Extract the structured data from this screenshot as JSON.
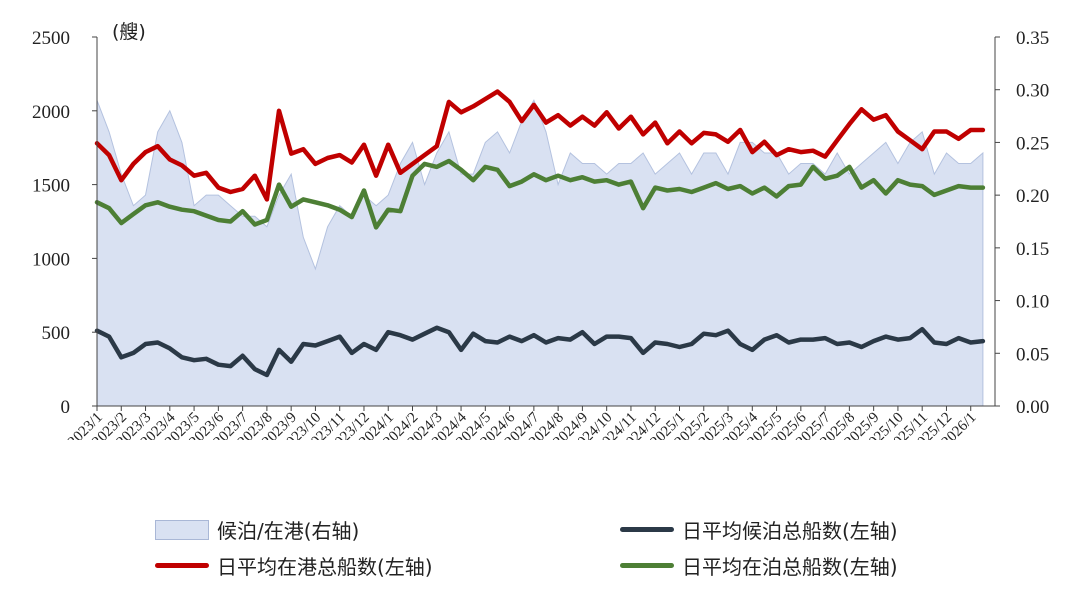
{
  "chart_data": {
    "type": "line",
    "unit_label": "(艘)",
    "left_axis": {
      "ylim": [
        0,
        2500
      ],
      "ticks": [
        "0",
        "500",
        "1000",
        "1500",
        "2000",
        "2500"
      ]
    },
    "right_axis": {
      "ylim": [
        0,
        0.35
      ],
      "ticks": [
        "0.00",
        "0.05",
        "0.10",
        "0.15",
        "0.20",
        "0.25",
        "0.30",
        "0.35"
      ]
    },
    "x_tick_labels": [
      "2023/1",
      "2023/2",
      "2023/3",
      "2023/4",
      "2023/5",
      "2023/6",
      "2023/7",
      "2023/8",
      "2023/9",
      "2023/10",
      "2023/11",
      "2023/12",
      "2024/1",
      "2024/2",
      "2024/3",
      "2024/4",
      "2024/5",
      "2024/6",
      "2024/7",
      "2024/8",
      "2024/9",
      "2024/10",
      "2024/11",
      "2024/12",
      "2025/1",
      "2025/2",
      "2025/3",
      "2025/4",
      "2025/5",
      "2025/6",
      "2025/7",
      "2025/8",
      "2025/9",
      "2025/10",
      "2025/11",
      "2025/12",
      "2026/1"
    ],
    "x_month_index": [
      0,
      0.5,
      1,
      1.5,
      2,
      2.5,
      3,
      3.5,
      4,
      4.5,
      5,
      5.5,
      6,
      6.5,
      7,
      7.5,
      8,
      8.5,
      9,
      9.5,
      10,
      10.5,
      11,
      11.5,
      12,
      12.5,
      13,
      13.5,
      14,
      14.5,
      15,
      15.5,
      16,
      16.5,
      17,
      17.5,
      18,
      18.5,
      19,
      19.5,
      20,
      20.5,
      21,
      21.5,
      22,
      22.5,
      23,
      23.5,
      24,
      24.5,
      25,
      25.5,
      26,
      26.5,
      27,
      27.5,
      28,
      28.5,
      29,
      29.5,
      30,
      30.5,
      31,
      31.5,
      32,
      32.5,
      33,
      33.5,
      34,
      34.5,
      35,
      35.5,
      36,
      36.5
    ],
    "series": [
      {
        "name": "候泊/在港(右轴)",
        "axis": "right",
        "style": "area",
        "color": "#d9e1f2",
        "values": [
          0.29,
          0.26,
          0.22,
          0.19,
          0.2,
          0.26,
          0.28,
          0.25,
          0.19,
          0.2,
          0.2,
          0.19,
          0.18,
          0.18,
          0.17,
          0.2,
          0.22,
          0.16,
          0.13,
          0.17,
          0.19,
          0.18,
          0.2,
          0.19,
          0.2,
          0.23,
          0.25,
          0.21,
          0.24,
          0.26,
          0.22,
          0.22,
          0.25,
          0.26,
          0.24,
          0.27,
          0.29,
          0.26,
          0.21,
          0.24,
          0.23,
          0.23,
          0.22,
          0.23,
          0.23,
          0.24,
          0.22,
          0.23,
          0.24,
          0.22,
          0.24,
          0.24,
          0.22,
          0.25,
          0.25,
          0.24,
          0.24,
          0.22,
          0.23,
          0.23,
          0.22,
          0.24,
          0.22,
          0.23,
          0.24,
          0.25,
          0.23,
          0.25,
          0.26,
          0.22,
          0.24,
          0.23,
          0.23,
          0.24
        ]
      },
      {
        "name": "日平均候泊总船数(左轴)",
        "axis": "left",
        "style": "line",
        "color": "#2b3947",
        "values": [
          510,
          470,
          330,
          360,
          420,
          430,
          390,
          330,
          310,
          320,
          280,
          270,
          340,
          250,
          210,
          380,
          300,
          420,
          410,
          440,
          470,
          360,
          420,
          380,
          500,
          480,
          450,
          490,
          530,
          500,
          380,
          490,
          440,
          430,
          470,
          440,
          480,
          430,
          460,
          450,
          500,
          420,
          470,
          470,
          460,
          360,
          430,
          420,
          400,
          420,
          490,
          480,
          510,
          420,
          380,
          450,
          480,
          430,
          450,
          450,
          460,
          420,
          430,
          400,
          440,
          470,
          450,
          460,
          520,
          430,
          420,
          460,
          430,
          440
        ]
      },
      {
        "name": "日平均在港总船数(左轴)",
        "axis": "left",
        "style": "line",
        "color": "#c00000",
        "values": [
          1780,
          1700,
          1530,
          1640,
          1720,
          1760,
          1670,
          1630,
          1560,
          1580,
          1480,
          1450,
          1470,
          1560,
          1400,
          2000,
          1710,
          1740,
          1640,
          1680,
          1700,
          1650,
          1770,
          1560,
          1770,
          1580,
          1640,
          1700,
          1760,
          2060,
          1990,
          2030,
          2080,
          2130,
          2060,
          1930,
          2040,
          1920,
          1970,
          1900,
          1960,
          1900,
          1990,
          1880,
          1960,
          1840,
          1920,
          1780,
          1860,
          1780,
          1850,
          1840,
          1790,
          1870,
          1720,
          1790,
          1700,
          1740,
          1720,
          1730,
          1690,
          1800,
          1910,
          2010,
          1940,
          1970,
          1860,
          1800,
          1740,
          1860,
          1860,
          1810,
          1870,
          1870
        ]
      },
      {
        "name": "日平均在泊总船数(左轴)",
        "axis": "left",
        "style": "line",
        "color": "#4d7f35",
        "values": [
          1380,
          1340,
          1240,
          1300,
          1360,
          1380,
          1350,
          1330,
          1320,
          1290,
          1260,
          1250,
          1320,
          1230,
          1260,
          1500,
          1350,
          1400,
          1380,
          1360,
          1330,
          1280,
          1460,
          1210,
          1330,
          1320,
          1560,
          1640,
          1620,
          1660,
          1600,
          1530,
          1620,
          1600,
          1490,
          1520,
          1570,
          1530,
          1560,
          1530,
          1550,
          1520,
          1530,
          1500,
          1520,
          1340,
          1480,
          1460,
          1470,
          1450,
          1480,
          1510,
          1470,
          1490,
          1440,
          1480,
          1420,
          1490,
          1500,
          1620,
          1540,
          1560,
          1620,
          1480,
          1530,
          1440,
          1530,
          1500,
          1490,
          1430,
          1460,
          1490,
          1480,
          1480
        ]
      }
    ],
    "legend": [
      {
        "label": "候泊/在港(右轴)",
        "kind": "area",
        "color": "#d9e1f2"
      },
      {
        "label": "日平均候泊总船数(左轴)",
        "kind": "line",
        "color": "#2b3947"
      },
      {
        "label": "日平均在港总船数(左轴)",
        "kind": "line",
        "color": "#c00000"
      },
      {
        "label": "日平均在泊总船数(左轴)",
        "kind": "line",
        "color": "#4d7f35"
      }
    ],
    "legend_placement": "bottom",
    "grid": false
  }
}
